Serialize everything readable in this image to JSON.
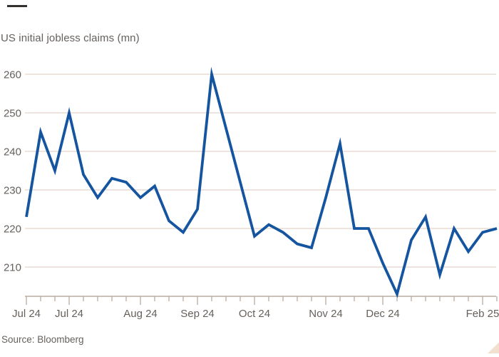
{
  "header": {
    "title": "US initial jobless claims (mn)"
  },
  "footer": {
    "source": "Source: Bloomberg"
  },
  "colors": {
    "background": "#ffffff",
    "line": "#1555a0",
    "gridline": "#e9dcd2",
    "axis": "#b9aea2",
    "text": "#66605c",
    "top_dash": "#33302e",
    "corner_triangle": "#f2dfce"
  },
  "chart_data": {
    "type": "line",
    "title": "US initial jobless claims (mn)",
    "source": "Source: Bloomberg",
    "series_name": "US initial jobless claims",
    "unit": "mn",
    "grid": "horizontal",
    "legend": "none",
    "y_axis": {
      "ticks": [
        210,
        220,
        230,
        240,
        250,
        260
      ],
      "ylim_drawn": [
        202.6,
        261.5
      ]
    },
    "x_axis": {
      "tick_interval": "weekly",
      "labeled_ticks": [
        {
          "label": "Jul 24",
          "point_index": 0
        },
        {
          "label": "Jul 24",
          "point_index": 3
        },
        {
          "label": "Aug 24",
          "point_index": 8
        },
        {
          "label": "Sep 24",
          "point_index": 12
        },
        {
          "label": "Oct 24",
          "point_index": 16
        },
        {
          "label": "Nov 24",
          "point_index": 21
        },
        {
          "label": "Dec 24",
          "point_index": 25
        },
        {
          "label": "Feb 25",
          "point_index": 32
        }
      ]
    },
    "values": [
      223,
      245,
      235,
      250,
      234,
      228,
      233,
      232,
      228,
      231,
      222,
      219,
      225,
      260,
      246,
      232,
      218,
      221,
      219,
      216,
      215,
      228,
      242,
      220,
      220,
      211,
      203,
      217,
      223,
      208,
      220,
      214,
      219,
      220
    ]
  }
}
